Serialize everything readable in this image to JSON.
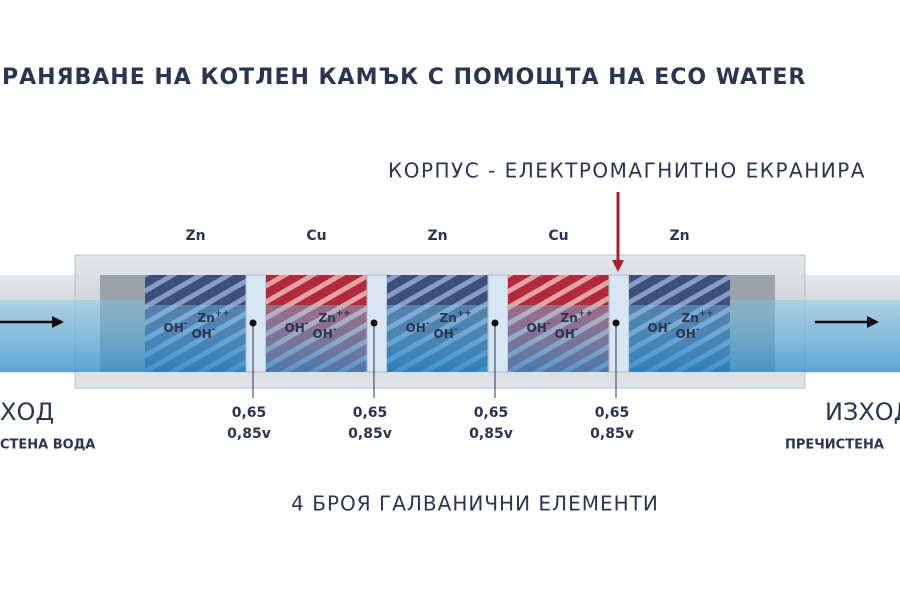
{
  "title": "РАНЯВАНЕ НА КОТЛЕН КАМЪК С ПОМОЩТА НА ECO WATER",
  "housing_label": "КОРПУС - ЕЛЕКТРОМАГНИТНО ЕКРАНИРА",
  "inlet": {
    "label": "ХОД",
    "sublabel": "СТЕНА ВОДА"
  },
  "outlet": {
    "label": "ИЗХОД",
    "sublabel": "ПРЕЧИСТЕНА"
  },
  "chambers": [
    {
      "metal": "Zn",
      "cation": {
        "symbol": "Zn",
        "charge": "++"
      },
      "anions": [
        {
          "symbol": "OH",
          "charge": "-"
        },
        {
          "symbol": "OH",
          "charge": "-"
        }
      ]
    },
    {
      "metal": "Cu",
      "cation": {
        "symbol": "Zn",
        "charge": "++"
      },
      "anions": [
        {
          "symbol": "OH",
          "charge": "-"
        },
        {
          "symbol": "OH",
          "charge": "-"
        }
      ]
    },
    {
      "metal": "Zn",
      "cation": {
        "symbol": "Zn",
        "charge": "++"
      },
      "anions": [
        {
          "symbol": "OH",
          "charge": "-"
        },
        {
          "symbol": "OH",
          "charge": "-"
        }
      ]
    },
    {
      "metal": "Cu",
      "cation": {
        "symbol": "Zn",
        "charge": "++"
      },
      "anions": [
        {
          "symbol": "OH",
          "charge": "-"
        },
        {
          "symbol": "OH",
          "charge": "-"
        }
      ]
    },
    {
      "metal": "Zn",
      "cation": {
        "symbol": "Zn",
        "charge": "++"
      },
      "anions": [
        {
          "symbol": "OH",
          "charge": "-"
        },
        {
          "symbol": "OH",
          "charge": "-"
        }
      ]
    }
  ],
  "junctions": [
    {
      "top": "0,65",
      "bottom": "0,85v"
    },
    {
      "top": "0,65",
      "bottom": "0,85v"
    },
    {
      "top": "0,65",
      "bottom": "0,85v"
    },
    {
      "top": "0,65",
      "bottom": "0,85v"
    }
  ],
  "caption": "4 БРОЯ ГАЛВАНИЧНИ ЕЛЕМЕНТИ"
}
